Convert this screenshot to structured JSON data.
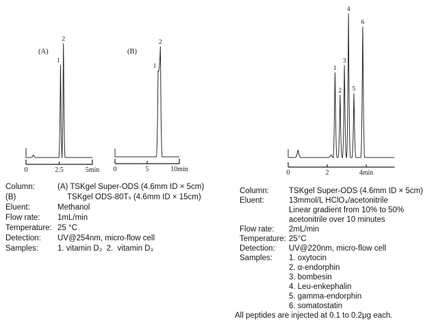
{
  "chart_data": [
    {
      "type": "line",
      "name": "chromatogram-A",
      "panel_label": "(A)",
      "xlabel": "time (min)",
      "x_axis": {
        "unit": "min",
        "xlim": [
          0,
          5
        ],
        "ticks": [
          {
            "t": 0,
            "label": "0",
            "major": true
          },
          {
            "t": 2.5,
            "label": "2.5",
            "major": false
          },
          {
            "t": 5,
            "label": "5min",
            "major": true
          }
        ]
      },
      "peaks": [
        {
          "label": "1",
          "t": 2.6,
          "rel_height": 0.73
        },
        {
          "label": "2",
          "t": 2.82,
          "rel_height": 0.9
        }
      ],
      "baseline_blips": [
        {
          "t": 0.55,
          "rel_height": 0.02
        }
      ]
    },
    {
      "type": "line",
      "name": "chromatogram-B",
      "panel_label": "(B)",
      "xlabel": "time (min)",
      "x_axis": {
        "unit": "min",
        "xlim": [
          0,
          10
        ],
        "ticks": [
          {
            "t": 0,
            "label": "0",
            "major": true
          },
          {
            "t": 5,
            "label": "5",
            "major": false
          },
          {
            "t": 10,
            "label": "10min",
            "major": true
          }
        ]
      },
      "peaks": [
        {
          "label": "1",
          "t": 6.7,
          "rel_height": 0.68
        },
        {
          "label": "2",
          "t": 7.05,
          "rel_height": 0.87
        }
      ],
      "baseline_blips": []
    },
    {
      "type": "line",
      "name": "chromatogram-peptides",
      "panel_label": "",
      "xlabel": "time (min)",
      "x_axis": {
        "unit": "min",
        "xlim": [
          0,
          5.45
        ],
        "ticks": [
          {
            "t": 0,
            "label": "0",
            "major": true
          },
          {
            "t": 2,
            "label": "2",
            "major": false
          },
          {
            "t": 4,
            "label": "4min",
            "major": false
          }
        ]
      },
      "peaks": [
        {
          "label": "1",
          "t": 2.4,
          "rel_height": 0.585
        },
        {
          "label": "2",
          "t": 2.66,
          "rel_height": 0.43
        },
        {
          "label": "3",
          "t": 2.88,
          "rel_height": 0.635
        },
        {
          "label": "4",
          "t": 3.09,
          "rel_height": 0.99
        },
        {
          "label": "5",
          "t": 3.37,
          "rel_height": 0.44
        },
        {
          "label": "6",
          "t": 3.82,
          "rel_height": 0.9
        }
      ],
      "baseline_blips": [
        {
          "t": 0.5,
          "rel_height": 0.052
        },
        {
          "t": 2.2,
          "rel_height": 0.018
        }
      ]
    }
  ],
  "left_caption": {
    "rows": [
      {
        "label": "Column:",
        "value": "(A) TSKgel Super-ODS (4.6mm ID × 5cm)"
      },
      {
        "label": "(B)",
        "value": "TSKgel ODS-80Tₛ (4.6mm ID × 15cm)"
      },
      {
        "label": "Eluent:",
        "value": "Methanol"
      },
      {
        "label": "Flow rate:",
        "value": "1mL/min"
      },
      {
        "label": "Temperature:",
        "value": "25 °C"
      },
      {
        "label": "Detection:",
        "value": "UV@254nm, micro-flow cell"
      },
      {
        "label": "Samples:",
        "value": "1. vitamin D₂  2.  vitamin D₃"
      }
    ]
  },
  "right_caption": {
    "rows": [
      {
        "label": "Column:",
        "value": "TSKgel Super-ODS (4.6mm ID × 5cm)"
      },
      {
        "label": "Eluent:",
        "value": "13mmol/L HClO₄/acetonitrile"
      },
      {
        "label": "",
        "value": "Linear gradient from 10% to 50%"
      },
      {
        "label": "",
        "value": "acetonitrile over 10 minutes"
      },
      {
        "label": "Flow rate:",
        "value": "2mL/min"
      },
      {
        "label": "Temperature:",
        "value": "25°C"
      },
      {
        "label": "Detection:",
        "value": "UV@220nm, micro-flow cell"
      },
      {
        "label": "Samples:",
        "value": "1. oxytocin"
      },
      {
        "label": "",
        "value": "2. α-endorphin"
      },
      {
        "label": "",
        "value": "3. bombesin"
      },
      {
        "label": "",
        "value": "4. Leu-enkephalin"
      },
      {
        "label": "",
        "value": "5. gamma-endorphin"
      },
      {
        "label": "",
        "value": "6. somatostatin"
      }
    ],
    "footnote": "All peptides are injected at 0.1 to 0.2μg each."
  },
  "colors": {
    "background": "#ffffff",
    "ink": "#1a1a1a",
    "trace": "#2b2b2b"
  }
}
